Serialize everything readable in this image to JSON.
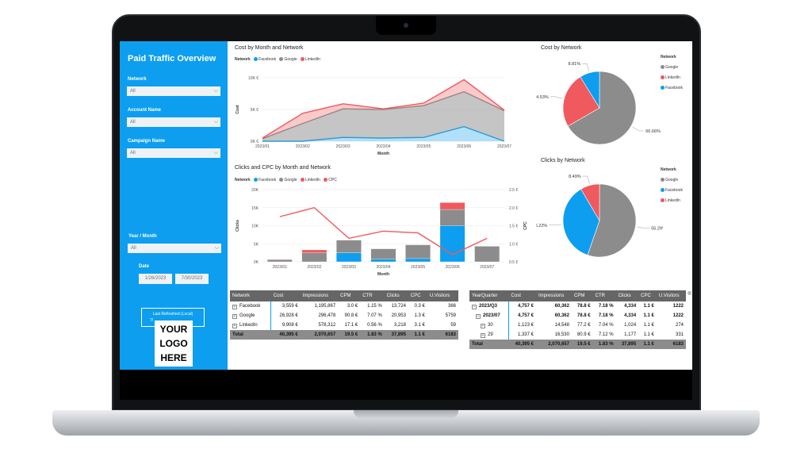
{
  "sidebar": {
    "title": "Paid Traffic Overview",
    "filters": [
      {
        "label": "Network",
        "value": "All"
      },
      {
        "label": "Account Name",
        "value": "All"
      },
      {
        "label": "Campaign Name",
        "value": "All"
      },
      {
        "label": "Year / Month",
        "value": "All"
      }
    ],
    "date_label": "Date",
    "date_start": "1/26/2023",
    "date_end": "7/30/2023",
    "refresh_label": "Last Refreshed (Local)",
    "refresh_value": "7/",
    "logo_lines": [
      "YOUR",
      "LOGO",
      "HERE"
    ]
  },
  "colors": {
    "facebook": "#0d9ef0",
    "google": "#8c8c8c",
    "linkedin": "#f0595e",
    "cpc": "#f0595e"
  },
  "legend": {
    "title": "Network",
    "facebook": "Facebook",
    "google": "Google",
    "linkedin": "LinkedIn",
    "cpc": "CPC"
  },
  "chart_data": [
    {
      "type": "area",
      "title": "Cost by Month and Network",
      "xlabel": "Month",
      "ylabel": "Cost",
      "categories": [
        "2023/01",
        "2023/02",
        "2023/03",
        "2023/04",
        "2023/05",
        "2023/06",
        "2023/07"
      ],
      "ytick_labels": [
        "0K €",
        "5K €",
        "10K €"
      ],
      "ylim": [
        0,
        10000
      ],
      "stacked": true,
      "series": [
        {
          "name": "Facebook",
          "values": [
            0,
            0,
            600,
            500,
            600,
            2300,
            0
          ]
        },
        {
          "name": "Google",
          "values": [
            400,
            2800,
            4500,
            4500,
            5000,
            5500,
            4800
          ]
        },
        {
          "name": "LinkedIn",
          "values": [
            100,
            1600,
            800,
            100,
            400,
            1900,
            100
          ]
        }
      ]
    },
    {
      "type": "bar",
      "title": "Clicks and CPC by Month and Network",
      "xlabel": "Month",
      "ylabel": "Clicks",
      "y2label": "CPC",
      "categories": [
        "2023/01",
        "2023/02",
        "2023/03",
        "2023/04",
        "2023/05",
        "2023/06",
        "2023/07"
      ],
      "ytick_labels": [
        "0K",
        "5K",
        "10K",
        "15K",
        "20K"
      ],
      "y2tick_labels": [
        "0.5 €",
        "1.0 €",
        "1.5 €",
        "2.0 €",
        "2.5 €"
      ],
      "ylim": [
        0,
        20000
      ],
      "y2lim": [
        0.5,
        2.5
      ],
      "stacked": true,
      "series": [
        {
          "name": "Facebook",
          "values": [
            0,
            0,
            2500,
            700,
            900,
            10000,
            0
          ]
        },
        {
          "name": "Google",
          "values": [
            600,
            2500,
            3500,
            2900,
            3800,
            4500,
            4300
          ]
        },
        {
          "name": "LinkedIn",
          "values": [
            100,
            800,
            0,
            0,
            0,
            1900,
            0
          ]
        }
      ],
      "line": {
        "name": "CPC",
        "values": [
          1.75,
          2.0,
          1.15,
          1.35,
          1.3,
          0.7,
          1.15
        ]
      }
    },
    {
      "type": "pie",
      "title": "Cost by Network",
      "legend": [
        "Google",
        "LinkedIn",
        "Facebook"
      ],
      "slices": [
        {
          "name": "Google",
          "value": 66.66,
          "label": "66.66%"
        },
        {
          "name": "LinkedIn",
          "value": 24.53,
          "label": "24.53%"
        },
        {
          "name": "Facebook",
          "value": 8.81,
          "label": "8.81%"
        }
      ]
    },
    {
      "type": "pie",
      "title": "Clicks by Network",
      "legend": [
        "Google",
        "Facebook",
        "LinkedIn"
      ],
      "slices": [
        {
          "name": "Google",
          "value": 55.29,
          "label": "55.29%"
        },
        {
          "name": "Facebook",
          "value": 36.22,
          "label": "36.22%"
        },
        {
          "name": "LinkedIn",
          "value": 8.49,
          "label": "8.49%"
        }
      ]
    }
  ],
  "network_table": {
    "headers": [
      "Network",
      "Cost",
      "Impressions",
      "CPM",
      "CTR",
      "Clicks",
      "CPC",
      "U.Visitors"
    ],
    "rows": [
      [
        "Facebook",
        "3,559 €",
        "1,195,867",
        "3.0 €",
        "1.15 %",
        "13,724",
        "0.3 €",
        "366"
      ],
      [
        "Google",
        "26,928 €",
        "296,478",
        "90.8 €",
        "7.07 %",
        "20,953",
        "1.3 €",
        "5759"
      ],
      [
        "LinkedIn",
        "9,908 €",
        "578,312",
        "17.1 €",
        "0.56 %",
        "3,218",
        "3.1 €",
        "59"
      ]
    ],
    "total": [
      "Total",
      "40,395 €",
      "2,070,657",
      "19.5 €",
      "1.83 %",
      "37,895",
      "1.1 €",
      "6183"
    ]
  },
  "quarter_table": {
    "headers": [
      "YearQuarter",
      "Cost",
      "Impressions",
      "CPM",
      "CTR",
      "Clicks",
      "CPC",
      "U.Visitors"
    ],
    "rows": [
      [
        "2023/Q3",
        "4,757 €",
        "60,362",
        "78.8 €",
        "7.18 %",
        "4,334",
        "1.1 €",
        "1222"
      ],
      [
        "2023/07",
        "4,757 €",
        "60,362",
        "78.8 €",
        "7.18 %",
        "4,334",
        "1.1 €",
        "1222"
      ],
      [
        "30",
        "1,123 €",
        "14,548",
        "77.2 €",
        "7.04 %",
        "1,024",
        "1.1 €",
        "274"
      ],
      [
        "29",
        "1,337 €",
        "16,530",
        "80.9 €",
        "7.12 %",
        "1,177",
        "1.1 €",
        "331"
      ]
    ],
    "total": [
      "Total",
      "40,395 €",
      "2,070,657",
      "19.5 €",
      "1.83 %",
      "37,895",
      "1.1 €",
      "6183"
    ]
  }
}
